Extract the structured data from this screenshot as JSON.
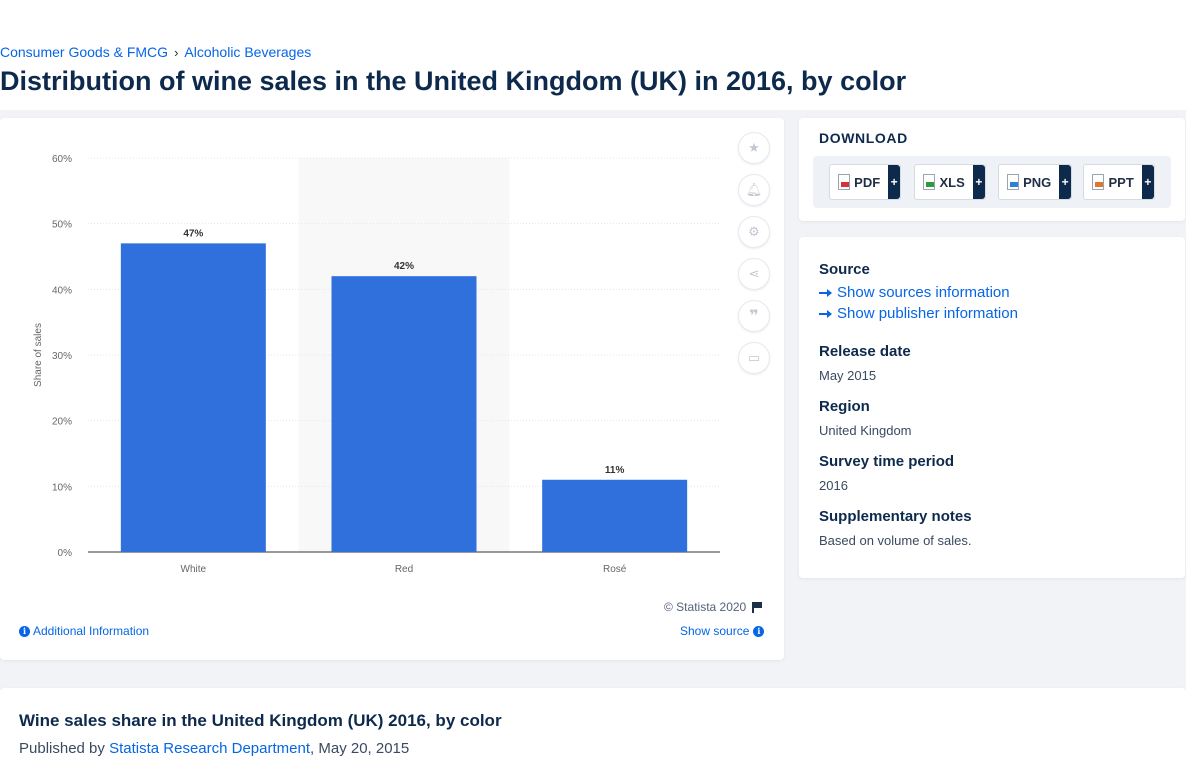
{
  "breadcrumb": {
    "items": [
      "Consumer Goods & FMCG",
      "Alcoholic Beverages"
    ],
    "separator": "›"
  },
  "page_title": "Distribution of wine sales in the United Kingdom (UK) in 2016, by color",
  "chart_data": {
    "type": "bar",
    "title": "",
    "categories": [
      "White",
      "Red",
      "Rosé"
    ],
    "values": [
      47,
      42,
      11
    ],
    "data_labels": [
      "47%",
      "42%",
      "11%"
    ],
    "ylabel": "Share of sales",
    "xlabel": "",
    "yticks": [
      "0%",
      "10%",
      "20%",
      "30%",
      "40%",
      "50%",
      "60%"
    ],
    "ylim": [
      0,
      60
    ],
    "grid": true,
    "highlighted_category": "Red",
    "bar_color": "#2f70dc"
  },
  "chart_footer": {
    "copyright": "© Statista 2020",
    "additional_info": "Additional Information",
    "show_source": "Show source"
  },
  "tools": [
    "star-icon",
    "bell-icon",
    "gear-icon",
    "share-icon",
    "quote-icon",
    "print-icon"
  ],
  "download": {
    "title": "DOWNLOAD",
    "buttons": [
      {
        "label": "PDF",
        "icon": "pdf-file-icon",
        "plus": "+"
      },
      {
        "label": "XLS",
        "icon": "xls-file-icon",
        "plus": "+"
      },
      {
        "label": "PNG",
        "icon": "png-file-icon",
        "plus": "+"
      },
      {
        "label": "PPT",
        "icon": "ppt-file-icon",
        "plus": "+"
      }
    ]
  },
  "info": {
    "source_label": "Source",
    "show_sources": "Show sources information",
    "show_publisher": "Show publisher information",
    "release_label": "Release date",
    "release_value": "May 2015",
    "region_label": "Region",
    "region_value": "United Kingdom",
    "survey_label": "Survey time period",
    "survey_value": "2016",
    "notes_label": "Supplementary notes",
    "notes_value": "Based on volume of sales."
  },
  "bottom": {
    "title": "Wine sales share in the United Kingdom (UK) 2016, by color",
    "published_prefix": "Published by",
    "publisher": "Statista Research Department",
    "date": ", May 20, 2015"
  }
}
